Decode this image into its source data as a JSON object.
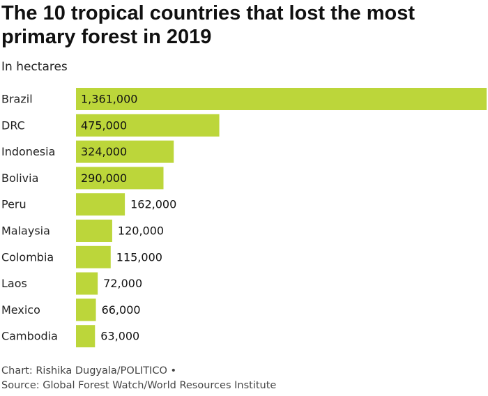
{
  "title": "The 10 tropical countries that lost the most primary forest in 2019",
  "subtitle": "In hectares",
  "footer": {
    "credit": "Chart: Rishika Dugyala/POLITICO •",
    "source": "Source: Global Forest Watch/World Resources Institute"
  },
  "colors": {
    "bar": "#bcd63a",
    "text": "#111111"
  },
  "chart_data": {
    "type": "bar",
    "orientation": "horizontal",
    "title": "The 10 tropical countries that lost the most primary forest in 2019",
    "subtitle": "In hectares",
    "xlabel": "",
    "ylabel": "",
    "xlim": [
      0,
      1361000
    ],
    "grid": false,
    "legend": "none",
    "categories": [
      "Brazil",
      "DRC",
      "Indonesia",
      "Bolivia",
      "Peru",
      "Malaysia",
      "Colombia",
      "Laos",
      "Mexico",
      "Cambodia"
    ],
    "values": [
      1361000,
      475000,
      324000,
      290000,
      162000,
      120000,
      115000,
      72000,
      66000,
      63000
    ],
    "value_labels": [
      "1,361,000",
      "475,000",
      "324,000",
      "290,000",
      "162,000",
      "120,000",
      "115,000",
      "72,000",
      "66,000",
      "63,000"
    ]
  }
}
